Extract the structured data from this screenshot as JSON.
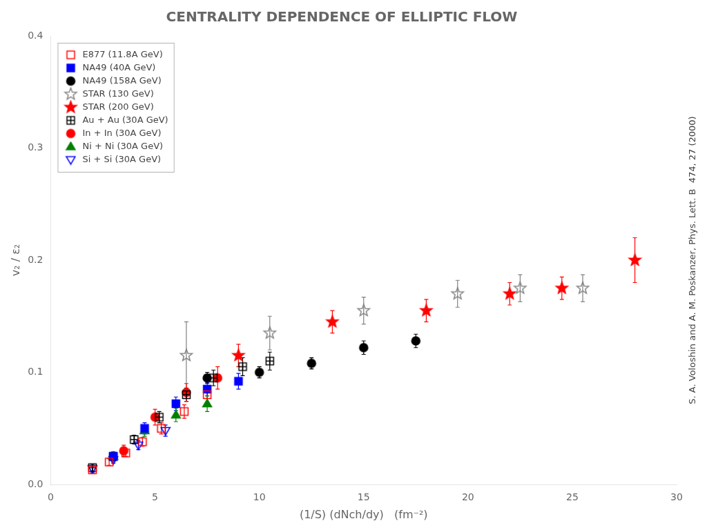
{
  "chart_data": {
    "type": "scatter",
    "title": "CENTRALITY DEPENDENCE OF ELLIPTIC FLOW",
    "x_label": "(1/S) (dNch/dy)   (fm⁻²)",
    "y_label": "v₂ / ε₂",
    "xlim": [
      0,
      30
    ],
    "ylim": [
      0.0,
      0.4
    ],
    "xticks": [
      0,
      5,
      10,
      15,
      20,
      25,
      30
    ],
    "yticks": [
      {
        "value": 0.0,
        "label": "0.0"
      },
      0.1,
      0.2,
      0.3,
      0.4
    ],
    "grid": false,
    "legend": "upper left",
    "series": [
      {
        "name": "E877 (11.8A GeV)",
        "color": "red",
        "marker": "square-open",
        "x": [
          2.0,
          2.8,
          3.6,
          4.4,
          5.3,
          6.4,
          7.5
        ],
        "values": [
          0.013,
          0.02,
          0.028,
          0.038,
          0.05,
          0.065,
          0.08
        ],
        "yerr": [
          0.003,
          0.003,
          0.003,
          0.004,
          0.005,
          0.006,
          0.008
        ]
      },
      {
        "name": "NA49 (40A GeV)",
        "color": "blue",
        "marker": "square",
        "x": [
          3.0,
          4.5,
          6.0,
          7.5,
          9.0
        ],
        "values": [
          0.025,
          0.05,
          0.072,
          0.085,
          0.092
        ],
        "yerr": [
          0.004,
          0.005,
          0.006,
          0.006,
          0.007
        ]
      },
      {
        "name": "NA49 (158A GeV)",
        "color": "black",
        "marker": "circle",
        "x": [
          7.5,
          10.0,
          12.5,
          15.0,
          17.5
        ],
        "values": [
          0.095,
          0.1,
          0.108,
          0.122,
          0.128
        ],
        "yerr": [
          0.005,
          0.005,
          0.005,
          0.006,
          0.006
        ]
      },
      {
        "name": "STAR (130 GeV)",
        "color": "gray",
        "marker": "star-open",
        "x": [
          6.5,
          10.5,
          15.0,
          19.5,
          22.5,
          25.5
        ],
        "values": [
          0.115,
          0.135,
          0.155,
          0.17,
          0.175,
          0.175
        ],
        "yerr": [
          0.03,
          0.015,
          0.012,
          0.012,
          0.012,
          0.012
        ]
      },
      {
        "name": "STAR (200 GeV)",
        "color": "red",
        "marker": "star",
        "x": [
          9.0,
          13.5,
          18.0,
          22.0,
          24.5,
          28.0
        ],
        "values": [
          0.115,
          0.145,
          0.155,
          0.17,
          0.175,
          0.2
        ],
        "yerr": [
          0.01,
          0.01,
          0.01,
          0.01,
          0.01,
          0.02
        ]
      },
      {
        "name": "Au + Au (30A GeV)",
        "color": "black",
        "marker": "square-cross",
        "x": [
          2.0,
          3.0,
          4.0,
          5.2,
          6.5,
          7.8,
          9.2,
          10.5
        ],
        "values": [
          0.015,
          0.025,
          0.04,
          0.06,
          0.08,
          0.095,
          0.105,
          0.11
        ],
        "yerr": [
          0.003,
          0.003,
          0.004,
          0.005,
          0.006,
          0.007,
          0.008,
          0.008
        ]
      },
      {
        "name": "In + In (30A GeV)",
        "color": "red",
        "marker": "circle",
        "x": [
          3.5,
          5.0,
          6.5,
          8.0
        ],
        "values": [
          0.03,
          0.06,
          0.082,
          0.095
        ],
        "yerr": [
          0.005,
          0.007,
          0.008,
          0.01
        ]
      },
      {
        "name": "Ni + Ni (30A GeV)",
        "color": "green",
        "marker": "triangle-up",
        "x": [
          3.0,
          4.5,
          6.0,
          7.5
        ],
        "values": [
          0.025,
          0.048,
          0.062,
          0.072
        ],
        "yerr": [
          0.004,
          0.005,
          0.006,
          0.007
        ]
      },
      {
        "name": "Si + Si (30A GeV)",
        "color": "blue",
        "marker": "triangle-down-open",
        "x": [
          2.0,
          3.0,
          4.2,
          5.5
        ],
        "values": [
          0.014,
          0.022,
          0.035,
          0.048
        ],
        "yerr": [
          0.003,
          0.003,
          0.004,
          0.005
        ]
      }
    ],
    "annotations": [
      "S. A. Voloshin and A. M. Poskanzer, Phys. Lett. B",
      "474, 27 (2000)"
    ]
  }
}
